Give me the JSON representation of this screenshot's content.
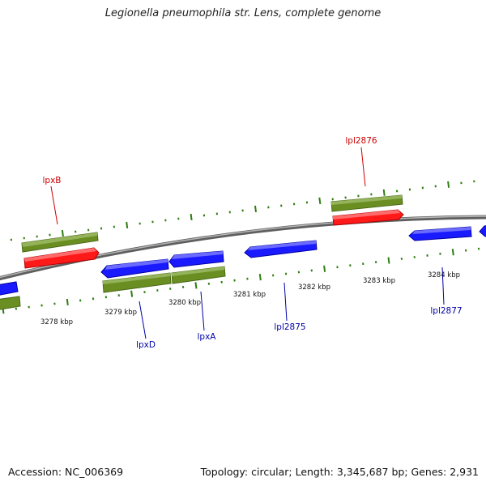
{
  "title": "Legionella pneumophila str. Lens, complete genome",
  "footer": {
    "accession": "Accession: NC_006369",
    "summary": "Topology: circular; Length: 3,345,687 bp; Genes: 2,931"
  },
  "colors": {
    "background": "#ffffff",
    "backbone": "#8c8c8c",
    "cds_forward_strand": "#6b8e23",
    "cds_reverse_strand": "#6b8e23",
    "gene_red": "#ff1a1a",
    "gene_blue": "#1a1aff",
    "tick_green": "#2e7d11",
    "label_red": "#cc0000",
    "label_blue": "#0000aa"
  },
  "scale_labels": [
    "3278 kbp",
    "3279 kbp",
    "3280 kbp",
    "3281 kbp",
    "3282 kbp",
    "3283 kbp",
    "3284 kbp"
  ],
  "gene_labels": [
    {
      "text": "lpxB",
      "color": "red"
    },
    {
      "text": "lpl2876",
      "color": "red"
    },
    {
      "text": "lpxD",
      "color": "blue"
    },
    {
      "text": "lpxA",
      "color": "blue"
    },
    {
      "text": "lpl2875",
      "color": "blue"
    },
    {
      "text": "lpl2877",
      "color": "blue"
    }
  ]
}
